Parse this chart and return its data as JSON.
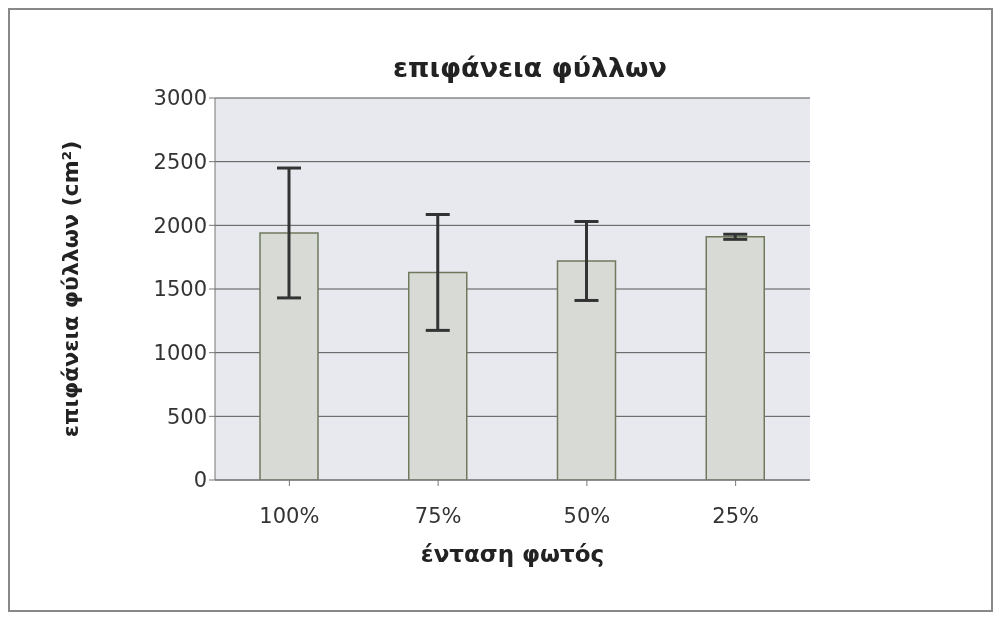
{
  "chart_data": {
    "type": "bar",
    "title": "επιφάνεια φύλλων",
    "xlabel": "ένταση φωτός",
    "ylabel": "επιφάνεια φύλλων (cm²)",
    "categories": [
      "100%",
      "75%",
      "50%",
      "25%"
    ],
    "values": [
      1940,
      1630,
      1720,
      1910
    ],
    "errors": [
      510,
      455,
      310,
      20
    ],
    "color": "#d8dbd5",
    "ylim": [
      0,
      3000
    ],
    "yticks": [
      0,
      500,
      1000,
      1500,
      2000,
      2500,
      3000
    ],
    "grid": "y"
  }
}
